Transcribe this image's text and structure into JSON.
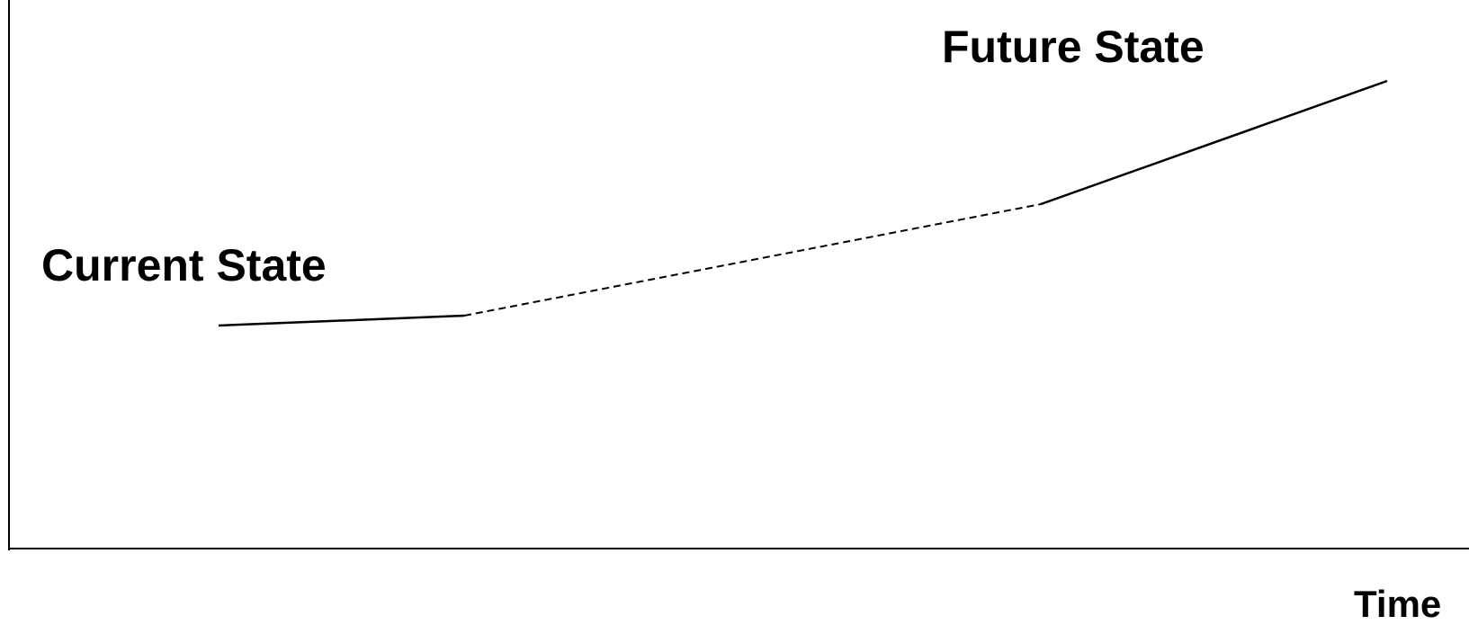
{
  "labels": {
    "current_state": "Current State",
    "future_state": "Future State",
    "x_axis": "Time"
  },
  "colors": {
    "line": "#000000",
    "background": "#ffffff"
  }
}
